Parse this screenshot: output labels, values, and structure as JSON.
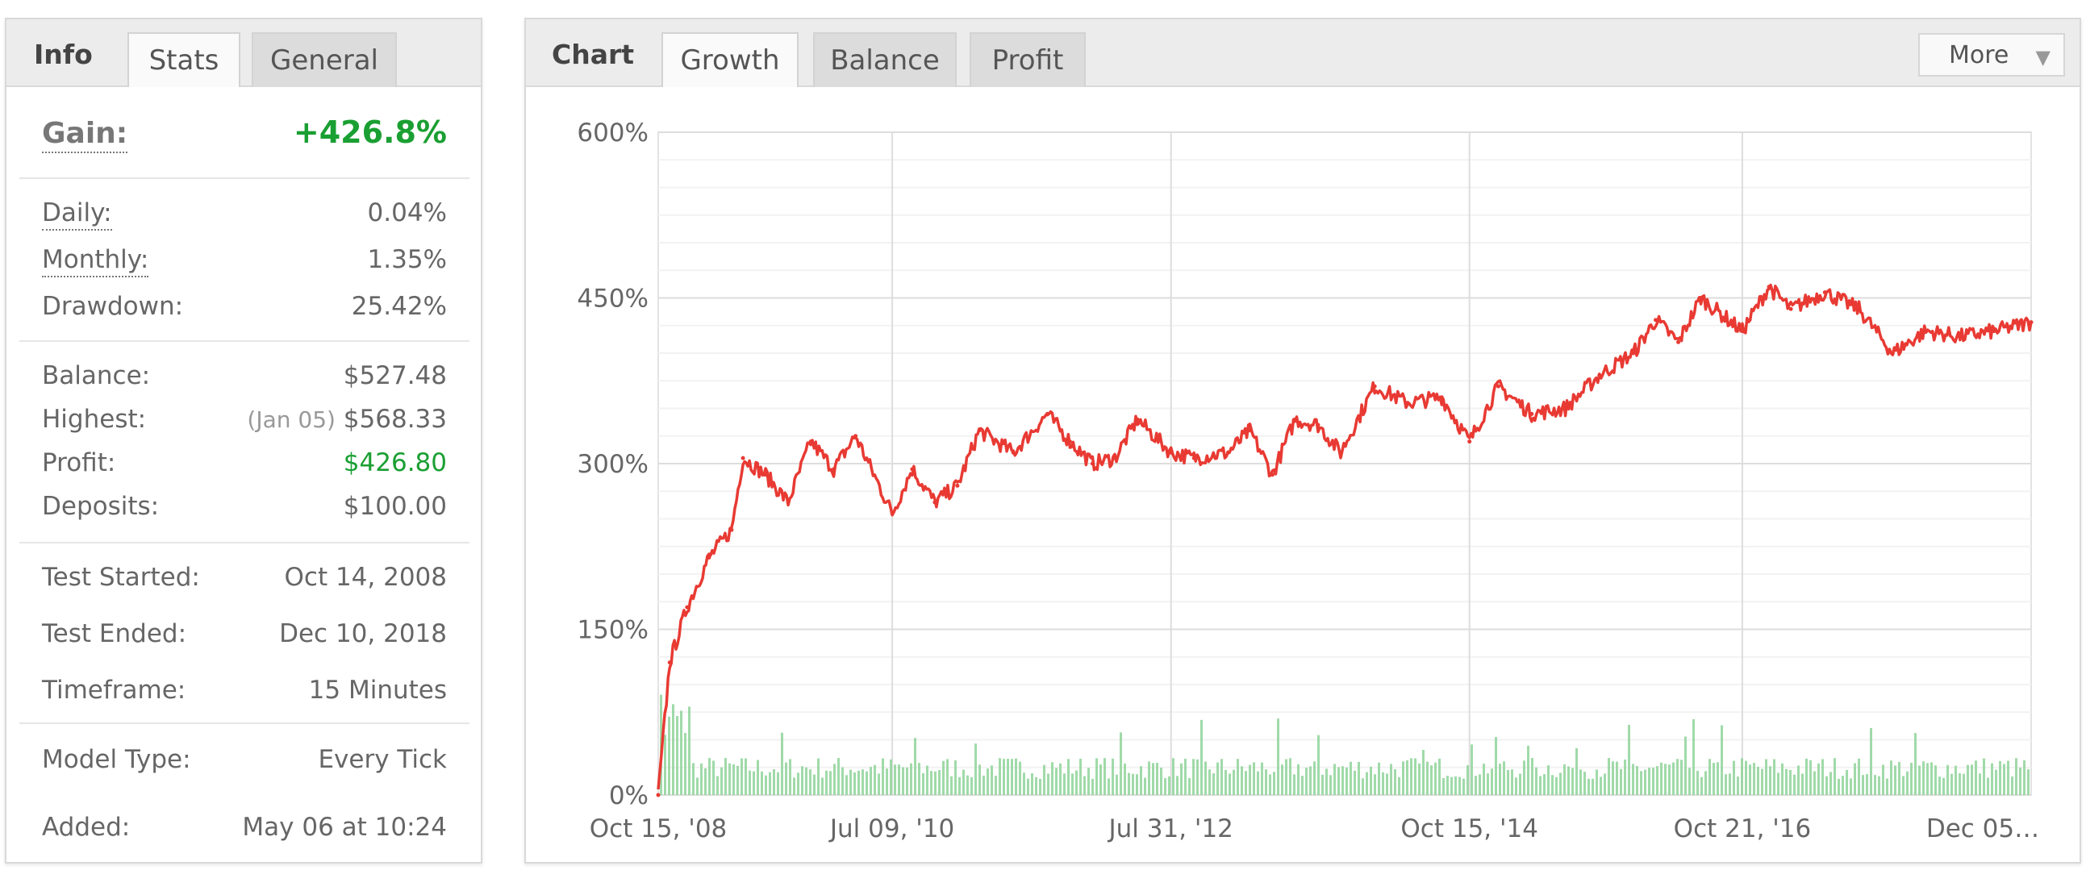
{
  "info_panel": {
    "title": "Info",
    "tabs": [
      {
        "label": "Stats",
        "active": true
      },
      {
        "label": "General",
        "active": false
      }
    ],
    "gain": {
      "label": "Gain:",
      "value": "+426.8%"
    },
    "rates": {
      "daily": {
        "label": "Daily:",
        "value": "0.04%"
      },
      "monthly": {
        "label": "Monthly:",
        "value": "1.35%"
      },
      "drawdown": {
        "label": "Drawdown:",
        "value": "25.42%"
      }
    },
    "money": {
      "balance": {
        "label": "Balance:",
        "value": "$527.48"
      },
      "highest": {
        "label": "Highest:",
        "date": "(Jan 05)",
        "value": "$568.33"
      },
      "profit": {
        "label": "Profit:",
        "value": "$426.80"
      },
      "deposits": {
        "label": "Deposits:",
        "value": "$100.00"
      }
    },
    "test": {
      "started": {
        "label": "Test Started:",
        "value": "Oct 14, 2008"
      },
      "ended": {
        "label": "Test Ended:",
        "value": "Dec 10, 2018"
      },
      "timeframe": {
        "label": "Timeframe:",
        "value": "15 Minutes"
      }
    },
    "model": {
      "label": "Model Type:",
      "value": "Every Tick"
    },
    "added": {
      "label": "Added:",
      "value": "May 06 at 10:24"
    }
  },
  "chart_panel": {
    "title": "Chart",
    "tabs": [
      {
        "label": "Growth",
        "active": true
      },
      {
        "label": "Balance",
        "active": false
      },
      {
        "label": "Profit",
        "active": false
      }
    ],
    "more_button": "More"
  },
  "colors": {
    "line": "#e83a33",
    "bars": "#8fd49a",
    "positive": "#1a9f32",
    "grid": "#e3e3e3"
  },
  "chart_data": {
    "type": "line",
    "title": "",
    "xlabel": "",
    "ylabel": "",
    "ylim": [
      0,
      600
    ],
    "ytick_labels": [
      "0%",
      "150%",
      "300%",
      "450%",
      "600%"
    ],
    "xtick_labels": [
      "Oct 15, '08",
      "Jul 09, '10",
      "Jul 31, '12",
      "Oct 15, '14",
      "Oct 21, '16",
      "Dec 05…"
    ],
    "grid": true,
    "series": [
      {
        "name": "",
        "x": [
          "2008-10-15",
          "2008-11-15",
          "2009-01-01",
          "2009-03-01",
          "2009-05-01",
          "2009-06-01",
          "2009-08-01",
          "2009-10-01",
          "2009-12-01",
          "2010-02-01",
          "2010-04-01",
          "2010-07-09",
          "2010-09-01",
          "2010-11-01",
          "2011-01-01",
          "2011-03-01",
          "2011-06-01",
          "2011-09-01",
          "2011-11-01",
          "2012-01-01",
          "2012-03-01",
          "2012-05-01",
          "2012-07-31",
          "2012-10-01",
          "2013-01-01",
          "2013-03-01",
          "2013-05-01",
          "2013-07-01",
          "2013-09-01",
          "2013-11-01",
          "2014-02-01",
          "2014-05-01",
          "2014-08-01",
          "2014-10-15",
          "2015-01-01",
          "2015-04-01",
          "2015-07-01",
          "2015-10-01",
          "2016-01-01",
          "2016-03-01",
          "2016-05-01",
          "2016-07-01",
          "2016-10-21",
          "2017-01-01",
          "2017-03-01",
          "2017-06-01",
          "2017-09-01",
          "2017-12-01",
          "2018-03-01",
          "2018-06-01",
          "2018-09-01",
          "2018-12-10"
        ],
        "y": [
          0,
          120,
          170,
          215,
          240,
          305,
          290,
          265,
          320,
          295,
          325,
          255,
          295,
          265,
          280,
          330,
          310,
          345,
          320,
          300,
          305,
          340,
          310,
          305,
          310,
          330,
          290,
          340,
          335,
          310,
          370,
          355,
          360,
          320,
          370,
          345,
          350,
          380,
          400,
          430,
          410,
          450,
          420,
          460,
          440,
          455,
          440,
          400,
          420,
          415,
          420,
          428
        ]
      }
    ],
    "bars_note_values": [
      75,
      60,
      55,
      45,
      40,
      50,
      55,
      45,
      60,
      50
    ]
  }
}
